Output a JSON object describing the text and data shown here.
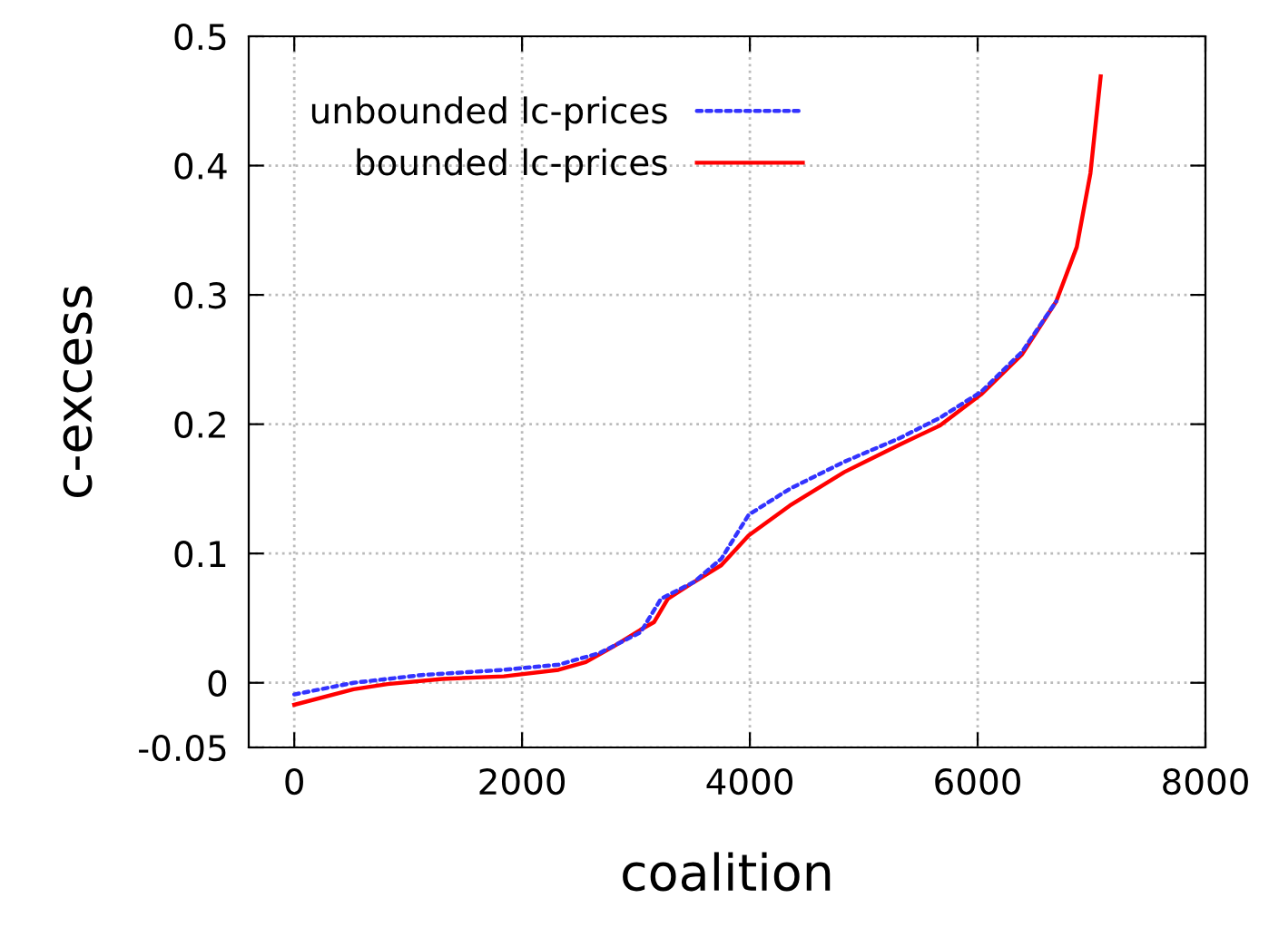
{
  "chart_data": {
    "type": "line",
    "xlabel": "coalition",
    "ylabel": "c-excess",
    "xlim": [
      -400,
      8000
    ],
    "ylim": [
      -0.05,
      0.5
    ],
    "xticks": [
      0,
      2000,
      4000,
      6000,
      8000
    ],
    "yticks": [
      -0.05,
      0,
      0.1,
      0.2,
      0.3,
      0.4,
      0.5
    ],
    "grid": true,
    "legend": "top left",
    "series": [
      {
        "name": "unbounded lc-prices",
        "color": "#3333ff",
        "line_style": "dotted",
        "x": [
          0,
          520,
          1120,
          1840,
          2320,
          2680,
          3040,
          3220,
          3510,
          3750,
          3990,
          4350,
          4830,
          5310,
          5670,
          6030,
          6390,
          6690
        ],
        "values": [
          -0.009,
          0.0,
          0.006,
          0.01,
          0.014,
          0.023,
          0.039,
          0.065,
          0.078,
          0.096,
          0.13,
          0.15,
          0.171,
          0.189,
          0.205,
          0.225,
          0.256,
          0.295
        ]
      },
      {
        "name": "bounded lc-prices",
        "color": "#ff0000",
        "line_style": "solid",
        "x": [
          0,
          520,
          820,
          1300,
          1840,
          2320,
          2560,
          2800,
          3040,
          3160,
          3280,
          3510,
          3750,
          3990,
          4350,
          4830,
          5310,
          5670,
          6030,
          6390,
          6690,
          6870,
          6990,
          7080
        ],
        "values": [
          -0.017,
          -0.005,
          -0.001,
          0.003,
          0.005,
          0.01,
          0.016,
          0.028,
          0.041,
          0.047,
          0.065,
          0.078,
          0.091,
          0.114,
          0.137,
          0.163,
          0.184,
          0.199,
          0.223,
          0.254,
          0.295,
          0.337,
          0.394,
          0.469
        ]
      }
    ]
  }
}
